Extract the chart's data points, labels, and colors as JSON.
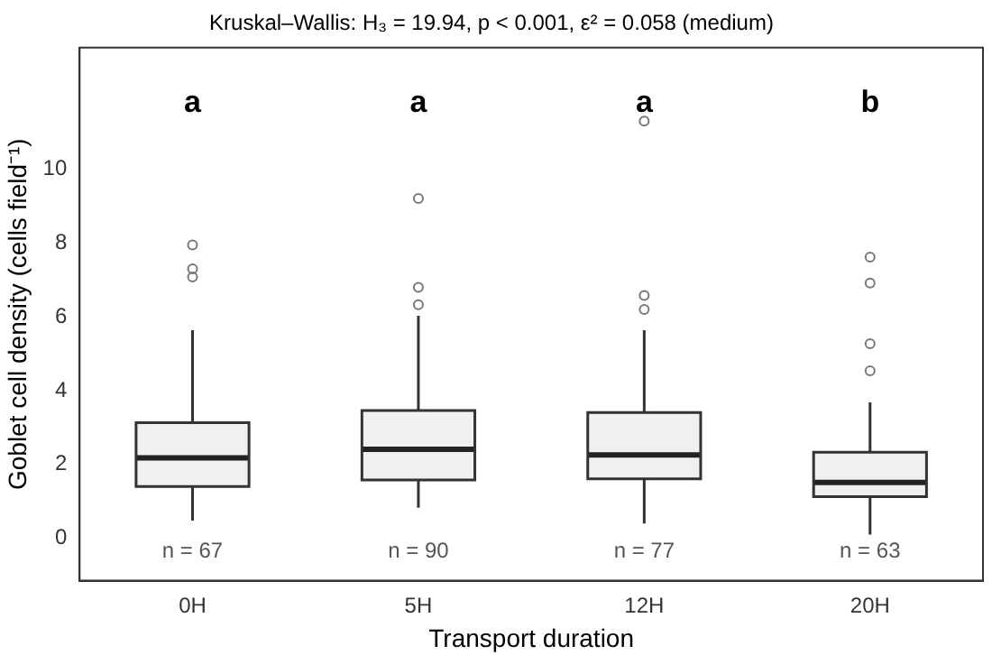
{
  "chart_data": {
    "type": "box",
    "title": "Kruskal–Wallis: H₃ = 19.94, p < 0.001, ε² = 0.058 (medium)",
    "xlabel": "Transport duration",
    "ylabel": "Goblet cell density (cells field⁻¹)",
    "categories": [
      "0H",
      "5H",
      "12H",
      "20H"
    ],
    "color": "#f0f0f0",
    "boxes": [
      {
        "low": 0.48,
        "q1": 1.4,
        "median": 2.18,
        "q3": 3.13,
        "high": 5.64,
        "outliers": [
          7.95,
          7.3,
          7.08
        ]
      },
      {
        "low": 0.83,
        "q1": 1.58,
        "median": 2.41,
        "q3": 3.46,
        "high": 6.03,
        "outliers": [
          6.33,
          6.8,
          9.21
        ]
      },
      {
        "low": 0.4,
        "q1": 1.61,
        "median": 2.26,
        "q3": 3.41,
        "high": 5.64,
        "outliers": [
          6.2,
          6.58,
          11.31
        ]
      },
      {
        "low": 0.1,
        "q1": 1.13,
        "median": 1.51,
        "q3": 2.33,
        "high": 3.68,
        "outliers": [
          4.54,
          5.27,
          6.92,
          7.62
        ]
      }
    ],
    "ylim": [
      -1.15,
      13.3
    ],
    "yticks": [
      0,
      2,
      4,
      6,
      8,
      10
    ],
    "grid": false,
    "legend": false,
    "annotations": [
      "a",
      "a",
      "a",
      "b",
      "n = 67",
      "n = 90",
      "n = 77",
      "n = 63"
    ]
  }
}
